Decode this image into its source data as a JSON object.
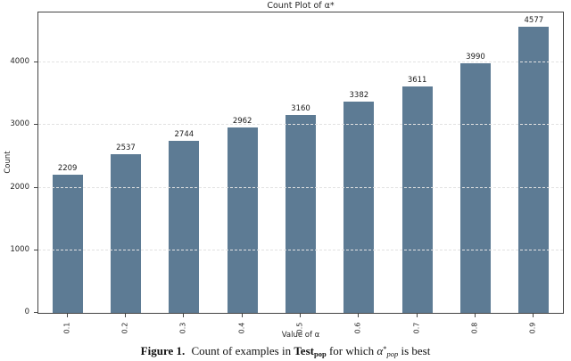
{
  "chart_data": {
    "type": "bar",
    "title": "Count Plot of α*",
    "categories": [
      "0.1",
      "0.2",
      "0.3",
      "0.4",
      "0.5",
      "0.6",
      "0.7",
      "0.8",
      "0.9"
    ],
    "values": [
      2209,
      2537,
      2744,
      2962,
      3160,
      3382,
      3611,
      3990,
      4577
    ],
    "xlabel": "Value of α",
    "ylabel": "Count",
    "ylim": [
      0,
      4800
    ],
    "yticks": [
      0,
      1000,
      2000,
      3000,
      4000
    ],
    "bar_color": "#5d7b94",
    "grid": true,
    "grid_color": "#e2e2e2",
    "legend": false
  },
  "caption": {
    "figure_label": "Figure 1.",
    "segment_1": " Count of examples in ",
    "test_word": "Test",
    "test_subscript": "pop",
    "segment_2": " for which ",
    "alpha_symbol": "α",
    "alpha_superscript": "*",
    "alpha_subscript": "pop",
    "segment_3": " is best"
  }
}
